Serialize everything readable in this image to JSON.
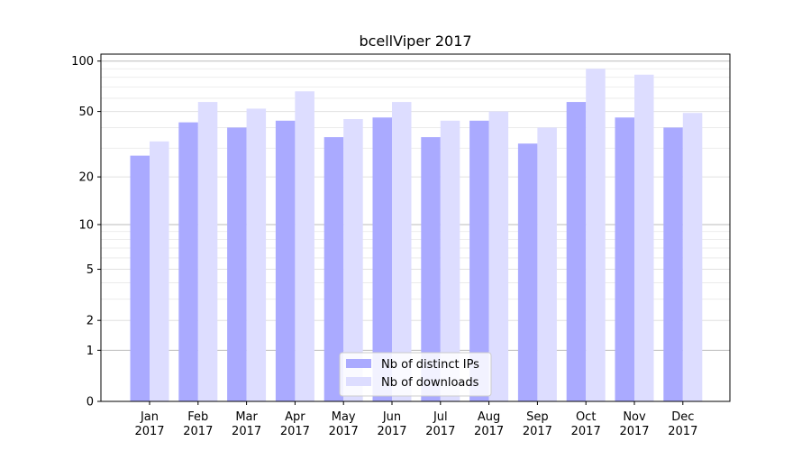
{
  "chart_data": {
    "type": "bar",
    "title": "bcellViper 2017",
    "xlabel": "",
    "ylabel": "",
    "yscale": "log1p",
    "ylim": [
      0,
      110
    ],
    "yticks": [
      0,
      1,
      2,
      5,
      10,
      20,
      50,
      100
    ],
    "grid": true,
    "legend_position": "bottom-center",
    "categories": [
      [
        "Jan",
        "2017"
      ],
      [
        "Feb",
        "2017"
      ],
      [
        "Mar",
        "2017"
      ],
      [
        "Apr",
        "2017"
      ],
      [
        "May",
        "2017"
      ],
      [
        "Jun",
        "2017"
      ],
      [
        "Jul",
        "2017"
      ],
      [
        "Aug",
        "2017"
      ],
      [
        "Sep",
        "2017"
      ],
      [
        "Oct",
        "2017"
      ],
      [
        "Nov",
        "2017"
      ],
      [
        "Dec",
        "2017"
      ]
    ],
    "series": [
      {
        "name": "Nb of distinct IPs",
        "color": "#aaaaff",
        "values": [
          27,
          43,
          40,
          44,
          35,
          46,
          35,
          44,
          32,
          57,
          46,
          40
        ]
      },
      {
        "name": "Nb of downloads",
        "color": "#ddddff",
        "values": [
          33,
          57,
          52,
          66,
          45,
          57,
          44,
          50,
          40,
          90,
          83,
          49
        ]
      }
    ]
  }
}
